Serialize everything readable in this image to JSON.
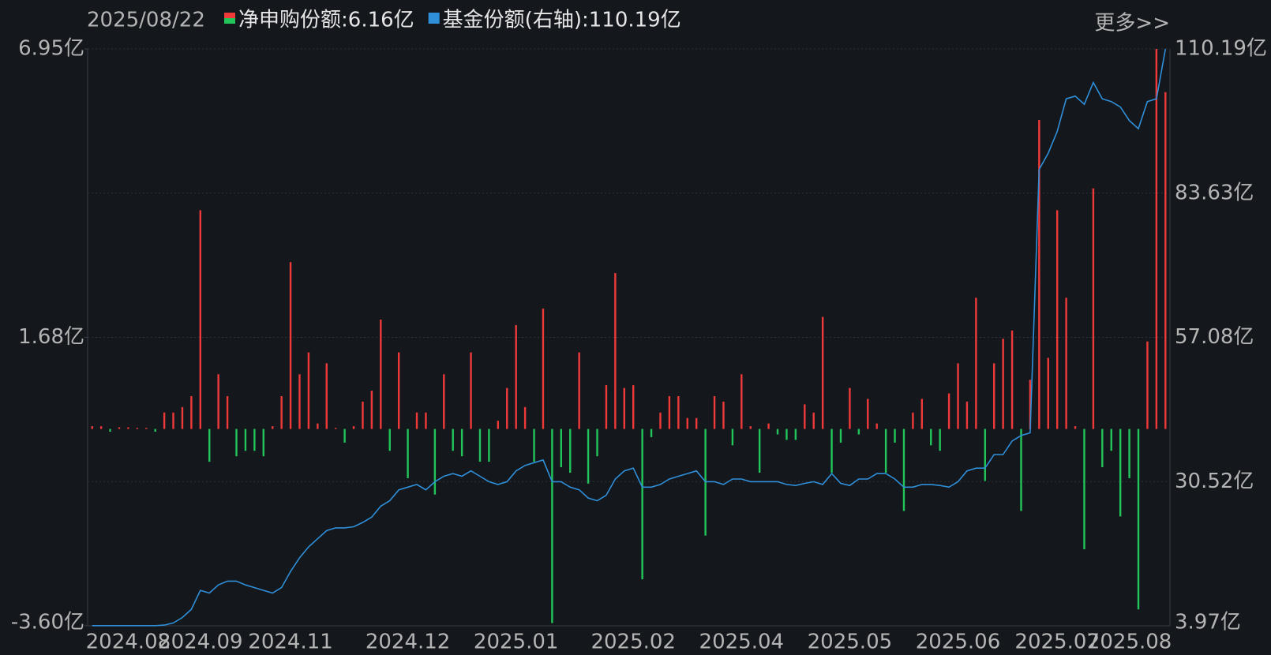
{
  "chart_data": {
    "type": "bar-line",
    "date": "2025/08/22",
    "more_link": "更多>>",
    "categories": [
      null,
      null,
      null,
      null,
      "2024.08",
      null,
      null,
      null,
      null,
      null,
      null,
      null,
      "2024.09",
      null,
      null,
      null,
      null,
      null,
      null,
      null,
      null,
      null,
      "2024.11",
      null,
      null,
      null,
      null,
      null,
      null,
      null,
      null,
      null,
      null,
      null,
      null,
      "2024.12",
      null,
      null,
      null,
      null,
      null,
      null,
      null,
      null,
      null,
      null,
      null,
      "2025.01",
      null,
      null,
      null,
      null,
      null,
      null,
      null,
      null,
      null,
      null,
      null,
      null,
      "2025.02",
      null,
      null,
      null,
      null,
      null,
      null,
      null,
      null,
      null,
      null,
      null,
      "2025.04",
      null,
      null,
      null,
      null,
      null,
      null,
      null,
      null,
      null,
      null,
      null,
      "2025.05",
      null,
      null,
      null,
      null,
      null,
      null,
      null,
      null,
      null,
      null,
      null,
      "2025.06",
      null,
      null,
      null,
      null,
      null,
      null,
      null,
      null,
      null,
      null,
      "2025.07",
      null,
      null,
      null,
      null,
      null,
      null,
      null,
      "2025.08",
      null,
      null,
      null,
      null
    ],
    "series": [
      {
        "name": "净申购份额",
        "type": "bar",
        "axis": "y",
        "color": "#f03a3a",
        "negative_color": "#22c55a",
        "last_label": ":6.16亿",
        "values": [
          0.05,
          0.05,
          -0.05,
          0.03,
          0.03,
          0.02,
          0.02,
          -0.05,
          0.3,
          0.3,
          0.4,
          0.6,
          4.0,
          -0.6,
          1.0,
          0.6,
          -0.5,
          -0.4,
          -0.4,
          -0.5,
          0.05,
          0.6,
          3.05,
          1.0,
          1.4,
          0.1,
          1.2,
          0.02,
          -0.25,
          0.05,
          0.5,
          0.7,
          2.0,
          -0.4,
          1.4,
          -0.9,
          0.3,
          0.3,
          -1.2,
          1.0,
          -0.4,
          -0.5,
          1.4,
          -0.6,
          -0.6,
          0.15,
          0.75,
          1.9,
          0.4,
          -0.6,
          2.2,
          -3.55,
          -0.7,
          -0.8,
          1.4,
          -1.0,
          -0.5,
          0.8,
          2.85,
          0.75,
          0.8,
          -2.75,
          -0.15,
          0.3,
          0.6,
          0.6,
          0.2,
          0.2,
          -1.95,
          0.6,
          0.5,
          -0.3,
          1.0,
          0.05,
          -0.8,
          0.1,
          -0.1,
          -0.2,
          -0.2,
          0.45,
          0.3,
          2.05,
          -0.8,
          -0.25,
          0.75,
          -0.1,
          0.55,
          0.1,
          -0.8,
          -0.25,
          -1.5,
          0.3,
          0.55,
          -0.3,
          -0.4,
          0.65,
          1.2,
          0.5,
          2.4,
          -0.95,
          1.2,
          1.65,
          1.8,
          -1.5,
          0.9,
          5.65,
          1.3,
          4.0,
          2.4,
          0.05,
          -2.2,
          4.4,
          -0.7,
          -0.4,
          -1.6,
          -0.9,
          -3.3,
          1.6,
          6.95,
          6.16
        ]
      },
      {
        "name": "基金份额(右轴)",
        "type": "line",
        "axis": "y2",
        "color": "#2f8fd8",
        "last_label": ":110.19亿",
        "values": [
          4.0,
          4.0,
          4.0,
          4.0,
          4.0,
          4.0,
          4.0,
          4.0,
          4.1,
          4.5,
          5.5,
          7.0,
          10.5,
          10.0,
          11.5,
          12.2,
          12.2,
          11.5,
          11.0,
          10.5,
          10.0,
          11.0,
          14.0,
          16.5,
          18.5,
          20.0,
          21.5,
          22.0,
          22.0,
          22.2,
          23.0,
          24.0,
          26.0,
          27.0,
          29.0,
          29.5,
          30.0,
          29.0,
          30.5,
          31.5,
          32.0,
          31.5,
          32.5,
          31.5,
          30.5,
          30.0,
          30.5,
          32.5,
          33.5,
          34.0,
          34.5,
          30.5,
          30.5,
          29.5,
          29.0,
          27.5,
          27.0,
          28.0,
          31.0,
          32.5,
          33.0,
          29.5,
          29.5,
          30.0,
          31.0,
          31.5,
          32.0,
          32.5,
          30.5,
          30.5,
          30.0,
          31.0,
          31.0,
          30.5,
          30.5,
          30.5,
          30.5,
          30.0,
          29.8,
          30.2,
          30.5,
          30.0,
          32.0,
          30.2,
          29.8,
          31.0,
          31.0,
          32.0,
          32.0,
          31.0,
          29.5,
          29.5,
          30.0,
          30.0,
          29.8,
          29.5,
          30.5,
          32.5,
          33.0,
          33.0,
          35.5,
          35.5,
          38.0,
          39.0,
          39.5,
          88.0,
          91.0,
          95.0,
          101.0,
          101.5,
          100.0,
          104.0,
          101.0,
          100.5,
          99.5,
          97.0,
          95.5,
          100.5,
          101.0,
          110.19
        ]
      }
    ],
    "ylim": [
      -3.6,
      6.95
    ],
    "yticks": [
      {
        "value": -3.6,
        "label": "-3.60亿"
      },
      {
        "value": 1.675,
        "label": "1.68亿"
      },
      {
        "value": 6.95,
        "label": "6.95亿"
      }
    ],
    "y2lim": [
      3.97,
      110.19
    ],
    "y2ticks": [
      {
        "value": 3.97,
        "label": "3.97亿"
      },
      {
        "value": 30.52,
        "label": "30.52亿"
      },
      {
        "value": 57.08,
        "label": "57.08亿"
      },
      {
        "value": 83.63,
        "label": "83.63亿"
      },
      {
        "value": 110.19,
        "label": "110.19亿"
      }
    ],
    "grid": true
  }
}
